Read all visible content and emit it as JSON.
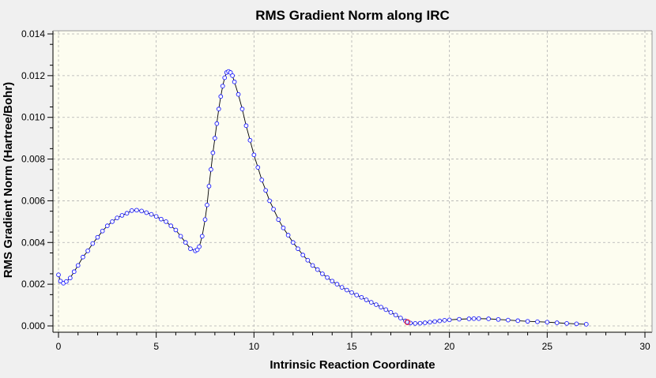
{
  "chart_data": {
    "type": "scatter",
    "title": "RMS Gradient Norm along IRC",
    "xlabel": "Intrinsic Reaction Coordinate",
    "ylabel": "RMS Gradient Norm (Hartree/Bohr)",
    "xlim": [
      0,
      30
    ],
    "ylim": [
      0,
      0.014
    ],
    "x_ticks": [
      "0",
      "5",
      "10",
      "15",
      "20",
      "25",
      "30"
    ],
    "y_ticks": [
      "0.000",
      "0.002",
      "0.004",
      "0.006",
      "0.008",
      "0.010",
      "0.012",
      "0.014"
    ],
    "grid": true,
    "legend": "none",
    "colors": {
      "background": "#f0f0f0",
      "plot_background": "#fdfdf0",
      "marker_edge": "#1a1aff",
      "line": "#000000",
      "highlight": "#ff3333",
      "grid": "#b0b0b0"
    },
    "highlight_point": {
      "x": 17.85,
      "y": 0.00018
    },
    "series": [
      {
        "points": [
          [
            0.0,
            0.00245
          ],
          [
            0.1,
            0.00215
          ],
          [
            0.25,
            0.00205
          ],
          [
            0.4,
            0.00213
          ],
          [
            0.6,
            0.0023
          ],
          [
            0.8,
            0.0026
          ],
          [
            1.0,
            0.0029
          ],
          [
            1.25,
            0.0033
          ],
          [
            1.5,
            0.0036
          ],
          [
            1.75,
            0.00395
          ],
          [
            2.0,
            0.00425
          ],
          [
            2.25,
            0.00455
          ],
          [
            2.5,
            0.0048
          ],
          [
            2.75,
            0.005
          ],
          [
            3.0,
            0.00518
          ],
          [
            3.25,
            0.0053
          ],
          [
            3.5,
            0.0054
          ],
          [
            3.75,
            0.00553
          ],
          [
            4.0,
            0.00555
          ],
          [
            4.25,
            0.00551
          ],
          [
            4.5,
            0.00543
          ],
          [
            4.75,
            0.00535
          ],
          [
            5.0,
            0.00525
          ],
          [
            5.25,
            0.00512
          ],
          [
            5.5,
            0.005
          ],
          [
            5.75,
            0.0048
          ],
          [
            6.0,
            0.0046
          ],
          [
            6.25,
            0.0043
          ],
          [
            6.5,
            0.004
          ],
          [
            6.75,
            0.0037
          ],
          [
            7.0,
            0.0036
          ],
          [
            7.1,
            0.00365
          ],
          [
            7.2,
            0.0038
          ],
          [
            7.35,
            0.0043
          ],
          [
            7.5,
            0.0051
          ],
          [
            7.6,
            0.0058
          ],
          [
            7.7,
            0.0067
          ],
          [
            7.8,
            0.0075
          ],
          [
            7.9,
            0.0083
          ],
          [
            8.0,
            0.009
          ],
          [
            8.1,
            0.0097
          ],
          [
            8.2,
            0.0104
          ],
          [
            8.3,
            0.011
          ],
          [
            8.4,
            0.0115
          ],
          [
            8.5,
            0.0119
          ],
          [
            8.6,
            0.01215
          ],
          [
            8.7,
            0.0122
          ],
          [
            8.8,
            0.01215
          ],
          [
            8.9,
            0.012
          ],
          [
            9.0,
            0.0117
          ],
          [
            9.2,
            0.0111
          ],
          [
            9.4,
            0.0104
          ],
          [
            9.6,
            0.0096
          ],
          [
            9.8,
            0.0089
          ],
          [
            10.0,
            0.0082
          ],
          [
            10.2,
            0.0076
          ],
          [
            10.4,
            0.007
          ],
          [
            10.6,
            0.0065
          ],
          [
            10.8,
            0.006
          ],
          [
            11.0,
            0.0056
          ],
          [
            11.25,
            0.0051
          ],
          [
            11.5,
            0.0047
          ],
          [
            11.75,
            0.00435
          ],
          [
            12.0,
            0.004
          ],
          [
            12.25,
            0.0037
          ],
          [
            12.5,
            0.0034
          ],
          [
            12.75,
            0.00315
          ],
          [
            13.0,
            0.0029
          ],
          [
            13.25,
            0.0027
          ],
          [
            13.5,
            0.0025
          ],
          [
            13.75,
            0.00232
          ],
          [
            14.0,
            0.00215
          ],
          [
            14.25,
            0.002
          ],
          [
            14.5,
            0.00185
          ],
          [
            14.75,
            0.00172
          ],
          [
            15.0,
            0.0016
          ],
          [
            15.25,
            0.00148
          ],
          [
            15.5,
            0.00137
          ],
          [
            15.75,
            0.00125
          ],
          [
            16.0,
            0.00113
          ],
          [
            16.25,
            0.00102
          ],
          [
            16.5,
            0.0009
          ],
          [
            16.75,
            0.00078
          ],
          [
            17.0,
            0.00065
          ],
          [
            17.25,
            0.00052
          ],
          [
            17.5,
            0.00038
          ],
          [
            17.75,
            0.00024
          ],
          [
            17.85,
            0.00018
          ],
          [
            18.0,
            0.00014
          ],
          [
            18.25,
            0.00012
          ],
          [
            18.5,
            0.00013
          ],
          [
            18.75,
            0.00015
          ],
          [
            19.0,
            0.00018
          ],
          [
            19.25,
            0.00021
          ],
          [
            19.5,
            0.00024
          ],
          [
            19.75,
            0.00027
          ],
          [
            20.0,
            0.00029
          ],
          [
            20.5,
            0.00032
          ],
          [
            21.0,
            0.00034
          ],
          [
            21.25,
            0.00035
          ],
          [
            21.5,
            0.00035
          ],
          [
            22.0,
            0.00034
          ],
          [
            22.5,
            0.00031
          ],
          [
            23.0,
            0.00028
          ],
          [
            23.5,
            0.00025
          ],
          [
            24.0,
            0.00022
          ],
          [
            24.5,
            0.0002
          ],
          [
            25.0,
            0.00018
          ],
          [
            25.5,
            0.00015
          ],
          [
            26.0,
            0.00012
          ],
          [
            26.5,
            0.0001
          ],
          [
            27.0,
            8e-05
          ]
        ]
      }
    ]
  }
}
